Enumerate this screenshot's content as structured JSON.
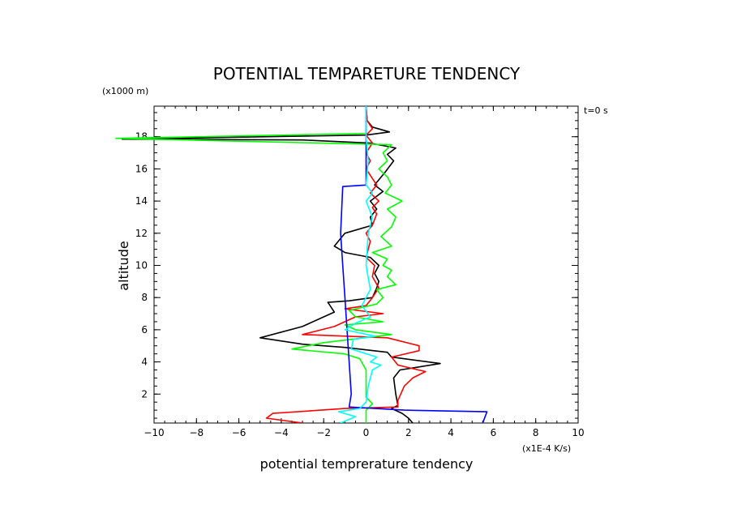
{
  "chart_data": {
    "type": "line",
    "title": "POTENTIAL TEMPARETURE TENDENCY",
    "xlabel": "potential temprerature tendency",
    "ylabel": "altitude",
    "x_unit_label": "(x1E-4 K/s)",
    "y_unit_label": "(x1000 m)",
    "time_label": "t=0 s",
    "xlim": [
      -10,
      10
    ],
    "ylim": [
      0.2,
      19.9
    ],
    "x_ticks": [
      "-10",
      "-8",
      "-6",
      "-4",
      "-2",
      "0",
      "2",
      "4",
      "6",
      "8",
      "10"
    ],
    "y_ticks": [
      "2",
      "4",
      "6",
      "8",
      "10",
      "12",
      "14",
      "16",
      "18"
    ],
    "series": [
      {
        "color": "#000000",
        "points": [
          [
            2.2,
            0.2
          ],
          [
            2.0,
            0.5
          ],
          [
            1.7,
            0.8
          ],
          [
            1.2,
            1.1
          ],
          [
            1.5,
            1.3
          ],
          [
            1.4,
            2.0
          ],
          [
            1.3,
            3.0
          ],
          [
            1.6,
            3.5
          ],
          [
            3.5,
            3.9
          ],
          [
            1.2,
            4.3
          ],
          [
            1.0,
            4.6
          ],
          [
            -1.0,
            4.9
          ],
          [
            -3.0,
            5.1
          ],
          [
            -5.0,
            5.5
          ],
          [
            -3.0,
            6.2
          ],
          [
            -2.0,
            6.8
          ],
          [
            -1.5,
            7.1
          ],
          [
            -1.8,
            7.7
          ],
          [
            -0.8,
            7.8
          ],
          [
            0.3,
            8.0
          ],
          [
            0.5,
            8.6
          ],
          [
            0.6,
            9.0
          ],
          [
            0.4,
            9.5
          ],
          [
            0.6,
            10.0
          ],
          [
            0.2,
            10.5
          ],
          [
            -1.0,
            10.8
          ],
          [
            -1.5,
            11.2
          ],
          [
            -1.0,
            12.0
          ],
          [
            0.3,
            12.5
          ],
          [
            0.2,
            13.0
          ],
          [
            0.5,
            13.5
          ],
          [
            0.2,
            14.0
          ],
          [
            0.8,
            14.6
          ],
          [
            0.4,
            15.0
          ],
          [
            0.9,
            15.8
          ],
          [
            1.3,
            16.5
          ],
          [
            1.0,
            16.9
          ],
          [
            1.4,
            17.3
          ],
          [
            0.2,
            17.6
          ],
          [
            -3.0,
            17.8
          ],
          [
            -11.5,
            17.85
          ],
          [
            0.0,
            18.1
          ],
          [
            1.1,
            18.3
          ],
          [
            0.3,
            18.6
          ],
          [
            0.05,
            19.0
          ],
          [
            0.0,
            19.9
          ]
        ]
      },
      {
        "color": "#ff0000",
        "points": [
          [
            -3.0,
            0.2
          ],
          [
            -4.7,
            0.5
          ],
          [
            -4.4,
            0.8
          ],
          [
            -1.0,
            1.1
          ],
          [
            1.5,
            1.2
          ],
          [
            1.5,
            1.6
          ],
          [
            1.8,
            2.5
          ],
          [
            2.2,
            3.0
          ],
          [
            2.8,
            3.4
          ],
          [
            1.5,
            3.8
          ],
          [
            1.2,
            4.3
          ],
          [
            2.5,
            4.7
          ],
          [
            2.5,
            5.0
          ],
          [
            1.0,
            5.5
          ],
          [
            -3.0,
            5.7
          ],
          [
            -1.5,
            6.2
          ],
          [
            -0.5,
            6.8
          ],
          [
            0.8,
            7.0
          ],
          [
            -1.0,
            7.3
          ],
          [
            0.0,
            7.5
          ],
          [
            0.3,
            8.0
          ],
          [
            0.6,
            8.6
          ],
          [
            0.3,
            9.3
          ],
          [
            0.4,
            10.0
          ],
          [
            0.0,
            10.5
          ],
          [
            0.2,
            11.5
          ],
          [
            0.0,
            12.0
          ],
          [
            0.3,
            12.5
          ],
          [
            0.5,
            13.2
          ],
          [
            0.3,
            13.6
          ],
          [
            0.6,
            14.0
          ],
          [
            0.2,
            14.5
          ],
          [
            0.5,
            15.0
          ],
          [
            0.0,
            16.0
          ],
          [
            0.2,
            16.5
          ],
          [
            0.0,
            17.0
          ],
          [
            0.3,
            17.6
          ],
          [
            0.0,
            18.1
          ],
          [
            0.3,
            18.5
          ],
          [
            0.05,
            19.0
          ],
          [
            0.0,
            19.9
          ]
        ]
      },
      {
        "color": "#00ff00",
        "points": [
          [
            0.0,
            0.2
          ],
          [
            0.0,
            1.0
          ],
          [
            0.3,
            1.4
          ],
          [
            0.0,
            1.8
          ],
          [
            0.0,
            2.5
          ],
          [
            0.0,
            3.5
          ],
          [
            -0.3,
            4.2
          ],
          [
            -1.0,
            4.5
          ],
          [
            -3.5,
            4.8
          ],
          [
            -2.0,
            5.2
          ],
          [
            1.2,
            5.7
          ],
          [
            -0.5,
            6.0
          ],
          [
            -1.0,
            6.3
          ],
          [
            0.8,
            6.5
          ],
          [
            -0.5,
            6.8
          ],
          [
            -0.8,
            7.2
          ],
          [
            0.5,
            7.6
          ],
          [
            0.8,
            8.0
          ],
          [
            0.5,
            8.5
          ],
          [
            1.4,
            8.8
          ],
          [
            1.0,
            9.3
          ],
          [
            1.2,
            9.7
          ],
          [
            0.8,
            10.0
          ],
          [
            1.0,
            10.4
          ],
          [
            0.3,
            10.8
          ],
          [
            1.2,
            11.2
          ],
          [
            0.7,
            11.8
          ],
          [
            1.2,
            12.4
          ],
          [
            1.4,
            13.0
          ],
          [
            1.0,
            13.5
          ],
          [
            1.7,
            14.0
          ],
          [
            0.9,
            14.5
          ],
          [
            1.2,
            15.0
          ],
          [
            1.0,
            15.5
          ],
          [
            0.6,
            16.0
          ],
          [
            1.0,
            16.5
          ],
          [
            0.8,
            17.0
          ],
          [
            1.2,
            17.5
          ],
          [
            -11.8,
            17.9
          ],
          [
            0.0,
            18.2
          ],
          [
            0.0,
            19.9
          ]
        ]
      },
      {
        "color": "#0000ff",
        "points": [
          [
            5.5,
            0.2
          ],
          [
            5.7,
            0.9
          ],
          [
            1.8,
            1.0
          ],
          [
            -0.8,
            1.2
          ],
          [
            -0.7,
            2.0
          ],
          [
            -0.8,
            4.0
          ],
          [
            -0.9,
            6.0
          ],
          [
            -1.0,
            8.0
          ],
          [
            -1.1,
            10.0
          ],
          [
            -1.2,
            12.0
          ],
          [
            -1.1,
            14.9
          ],
          [
            0.0,
            15.0
          ],
          [
            0.0,
            16.0
          ],
          [
            0.0,
            19.9
          ]
        ]
      },
      {
        "color": "#00ffff",
        "points": [
          [
            -1.2,
            0.2
          ],
          [
            -0.5,
            0.6
          ],
          [
            -1.3,
            0.9
          ],
          [
            -0.3,
            1.1
          ],
          [
            0.0,
            1.5
          ],
          [
            0.1,
            2.5
          ],
          [
            0.3,
            3.5
          ],
          [
            0.7,
            3.8
          ],
          [
            0.2,
            4.0
          ],
          [
            0.5,
            4.3
          ],
          [
            -0.7,
            4.8
          ],
          [
            -0.6,
            5.4
          ],
          [
            0.4,
            5.6
          ],
          [
            -1.0,
            6.0
          ],
          [
            -0.5,
            6.4
          ],
          [
            0.2,
            6.8
          ],
          [
            -0.2,
            7.5
          ],
          [
            0.2,
            8.5
          ],
          [
            0.0,
            10.0
          ],
          [
            0.1,
            12.0
          ],
          [
            0.3,
            13.0
          ],
          [
            0.0,
            14.0
          ],
          [
            0.3,
            14.5
          ],
          [
            0.0,
            15.0
          ],
          [
            0.1,
            16.5
          ],
          [
            0.0,
            18.0
          ],
          [
            0.0,
            19.9
          ]
        ]
      }
    ]
  }
}
